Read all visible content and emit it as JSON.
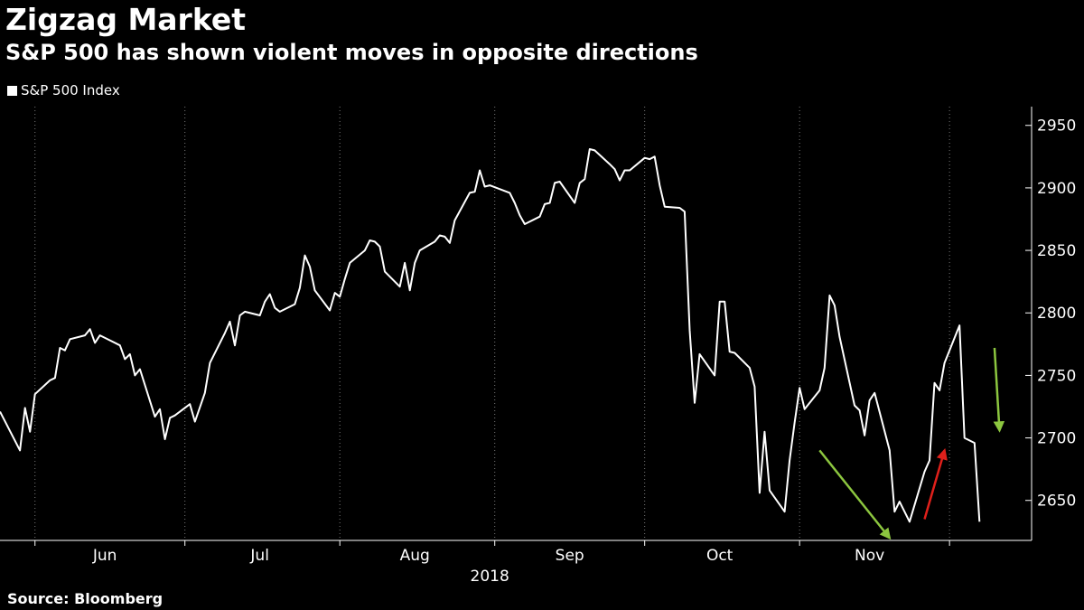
{
  "header": {
    "title": "Zigzag Market",
    "subtitle": "S&P 500 has shown violent moves in opposite directions"
  },
  "footer": {
    "source": "Source: Bloomberg"
  },
  "colors": {
    "background": "#000000",
    "line": "#ffffff",
    "arrow_green": "#8cc63f",
    "arrow_red": "#e0201b"
  },
  "chart_data": {
    "type": "line",
    "title": "Zigzag Market",
    "subtitle": "S&P 500 has shown violent moves in opposite directions",
    "xlabel": "",
    "ylabel": "",
    "ylim": [
      2618,
      2965
    ],
    "y_ticks": [
      2650,
      2700,
      2750,
      2800,
      2850,
      2900,
      2950
    ],
    "x_tick_labels": [
      "Jun",
      "Jul",
      "Aug",
      "Sep",
      "Oct",
      "Nov"
    ],
    "x_year_label": "2018",
    "grid": "vertical-dotted",
    "legend": {
      "placement": "top-left",
      "entries": [
        "S&P 500 Index"
      ]
    },
    "series": [
      {
        "name": "S&P 500 Index",
        "points": [
          [
            "2018-05-25",
            2721
          ],
          [
            "2018-05-29",
            2690
          ],
          [
            "2018-05-30",
            2724
          ],
          [
            "2018-05-31",
            2705
          ],
          [
            "2018-06-01",
            2735
          ],
          [
            "2018-06-04",
            2746
          ],
          [
            "2018-06-05",
            2748
          ],
          [
            "2018-06-06",
            2772
          ],
          [
            "2018-06-07",
            2770
          ],
          [
            "2018-06-08",
            2779
          ],
          [
            "2018-06-11",
            2782
          ],
          [
            "2018-06-12",
            2787
          ],
          [
            "2018-06-13",
            2776
          ],
          [
            "2018-06-14",
            2782
          ],
          [
            "2018-06-15",
            2780
          ],
          [
            "2018-06-18",
            2774
          ],
          [
            "2018-06-19",
            2763
          ],
          [
            "2018-06-20",
            2767
          ],
          [
            "2018-06-21",
            2750
          ],
          [
            "2018-06-22",
            2755
          ],
          [
            "2018-06-25",
            2717
          ],
          [
            "2018-06-26",
            2723
          ],
          [
            "2018-06-27",
            2699
          ],
          [
            "2018-06-28",
            2716
          ],
          [
            "2018-06-29",
            2718
          ],
          [
            "2018-07-02",
            2727
          ],
          [
            "2018-07-03",
            2713
          ],
          [
            "2018-07-05",
            2736
          ],
          [
            "2018-07-06",
            2760
          ],
          [
            "2018-07-09",
            2784
          ],
          [
            "2018-07-10",
            2793
          ],
          [
            "2018-07-11",
            2774
          ],
          [
            "2018-07-12",
            2798
          ],
          [
            "2018-07-13",
            2801
          ],
          [
            "2018-07-16",
            2798
          ],
          [
            "2018-07-17",
            2809
          ],
          [
            "2018-07-18",
            2815
          ],
          [
            "2018-07-19",
            2804
          ],
          [
            "2018-07-20",
            2801
          ],
          [
            "2018-07-23",
            2807
          ],
          [
            "2018-07-24",
            2820
          ],
          [
            "2018-07-25",
            2846
          ],
          [
            "2018-07-26",
            2837
          ],
          [
            "2018-07-27",
            2818
          ],
          [
            "2018-07-30",
            2802
          ],
          [
            "2018-07-31",
            2816
          ],
          [
            "2018-08-01",
            2813
          ],
          [
            "2018-08-02",
            2827
          ],
          [
            "2018-08-03",
            2840
          ],
          [
            "2018-08-06",
            2850
          ],
          [
            "2018-08-07",
            2858
          ],
          [
            "2018-08-08",
            2857
          ],
          [
            "2018-08-09",
            2853
          ],
          [
            "2018-08-10",
            2833
          ],
          [
            "2018-08-13",
            2821
          ],
          [
            "2018-08-14",
            2840
          ],
          [
            "2018-08-15",
            2818
          ],
          [
            "2018-08-16",
            2840
          ],
          [
            "2018-08-17",
            2850
          ],
          [
            "2018-08-20",
            2857
          ],
          [
            "2018-08-21",
            2862
          ],
          [
            "2018-08-22",
            2861
          ],
          [
            "2018-08-23",
            2856
          ],
          [
            "2018-08-24",
            2874
          ],
          [
            "2018-08-27",
            2896
          ],
          [
            "2018-08-28",
            2897
          ],
          [
            "2018-08-29",
            2914
          ],
          [
            "2018-08-30",
            2901
          ],
          [
            "2018-08-31",
            2902
          ],
          [
            "2018-09-04",
            2896
          ],
          [
            "2018-09-05",
            2888
          ],
          [
            "2018-09-06",
            2878
          ],
          [
            "2018-09-07",
            2871
          ],
          [
            "2018-09-10",
            2877
          ],
          [
            "2018-09-11",
            2887
          ],
          [
            "2018-09-12",
            2888
          ],
          [
            "2018-09-13",
            2904
          ],
          [
            "2018-09-14",
            2905
          ],
          [
            "2018-09-17",
            2888
          ],
          [
            "2018-09-18",
            2904
          ],
          [
            "2018-09-19",
            2907
          ],
          [
            "2018-09-20",
            2931
          ],
          [
            "2018-09-21",
            2930
          ],
          [
            "2018-09-24",
            2919
          ],
          [
            "2018-09-25",
            2915
          ],
          [
            "2018-09-26",
            2906
          ],
          [
            "2018-09-27",
            2914
          ],
          [
            "2018-09-28",
            2914
          ],
          [
            "2018-10-01",
            2924
          ],
          [
            "2018-10-02",
            2923
          ],
          [
            "2018-10-03",
            2925
          ],
          [
            "2018-10-04",
            2902
          ],
          [
            "2018-10-05",
            2885
          ],
          [
            "2018-10-08",
            2884
          ],
          [
            "2018-10-09",
            2881
          ],
          [
            "2018-10-10",
            2786
          ],
          [
            "2018-10-11",
            2728
          ],
          [
            "2018-10-12",
            2767
          ],
          [
            "2018-10-15",
            2750
          ],
          [
            "2018-10-16",
            2809
          ],
          [
            "2018-10-17",
            2809
          ],
          [
            "2018-10-18",
            2769
          ],
          [
            "2018-10-19",
            2768
          ],
          [
            "2018-10-22",
            2756
          ],
          [
            "2018-10-23",
            2741
          ],
          [
            "2018-10-24",
            2656
          ],
          [
            "2018-10-25",
            2705
          ],
          [
            "2018-10-26",
            2658
          ],
          [
            "2018-10-29",
            2641
          ],
          [
            "2018-10-30",
            2682
          ],
          [
            "2018-10-31",
            2712
          ],
          [
            "2018-11-01",
            2740
          ],
          [
            "2018-11-02",
            2723
          ],
          [
            "2018-11-05",
            2738
          ],
          [
            "2018-11-06",
            2756
          ],
          [
            "2018-11-07",
            2814
          ],
          [
            "2018-11-08",
            2806
          ],
          [
            "2018-11-09",
            2781
          ],
          [
            "2018-11-12",
            2726
          ],
          [
            "2018-11-13",
            2722
          ],
          [
            "2018-11-14",
            2702
          ],
          [
            "2018-11-15",
            2730
          ],
          [
            "2018-11-16",
            2736
          ],
          [
            "2018-11-19",
            2690
          ],
          [
            "2018-11-20",
            2641
          ],
          [
            "2018-11-21",
            2649
          ],
          [
            "2018-11-23",
            2633
          ],
          [
            "2018-11-26",
            2673
          ],
          [
            "2018-11-27",
            2682
          ],
          [
            "2018-11-28",
            2744
          ],
          [
            "2018-11-29",
            2738
          ],
          [
            "2018-11-30",
            2760
          ],
          [
            "2018-12-03",
            2790
          ],
          [
            "2018-12-04",
            2700
          ],
          [
            "2018-12-06",
            2696
          ],
          [
            "2018-12-07",
            2633
          ]
        ]
      }
    ],
    "annotations": [
      {
        "type": "arrow",
        "color": "green",
        "from": [
          "2018-11-05",
          2690
        ],
        "to": [
          "2018-11-19",
          2620
        ]
      },
      {
        "type": "arrow",
        "color": "red",
        "from": [
          "2018-11-26",
          2635
        ],
        "to": [
          "2018-11-30",
          2690
        ]
      },
      {
        "type": "arrow",
        "color": "green",
        "from": [
          "2018-12-10",
          2772
        ],
        "to": [
          "2018-12-11",
          2706
        ]
      }
    ]
  }
}
